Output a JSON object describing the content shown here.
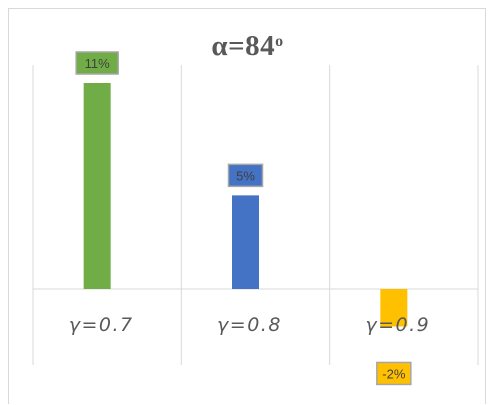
{
  "title_main": "α=84",
  "title_sup": "o",
  "chart_data": {
    "type": "bar",
    "title": "α=84o",
    "categories": [
      "γ=0.7",
      "γ=0.8",
      "γ=0.9"
    ],
    "values": [
      11,
      5,
      -2
    ],
    "data_labels": [
      "11%",
      "5%",
      "-2%"
    ],
    "colors": [
      "#70ad47",
      "#4472c4",
      "#ffc000"
    ],
    "ylim": [
      -3,
      11
    ],
    "xlabel": "",
    "ylabel": "",
    "grid": "vertical",
    "legend": "none"
  }
}
